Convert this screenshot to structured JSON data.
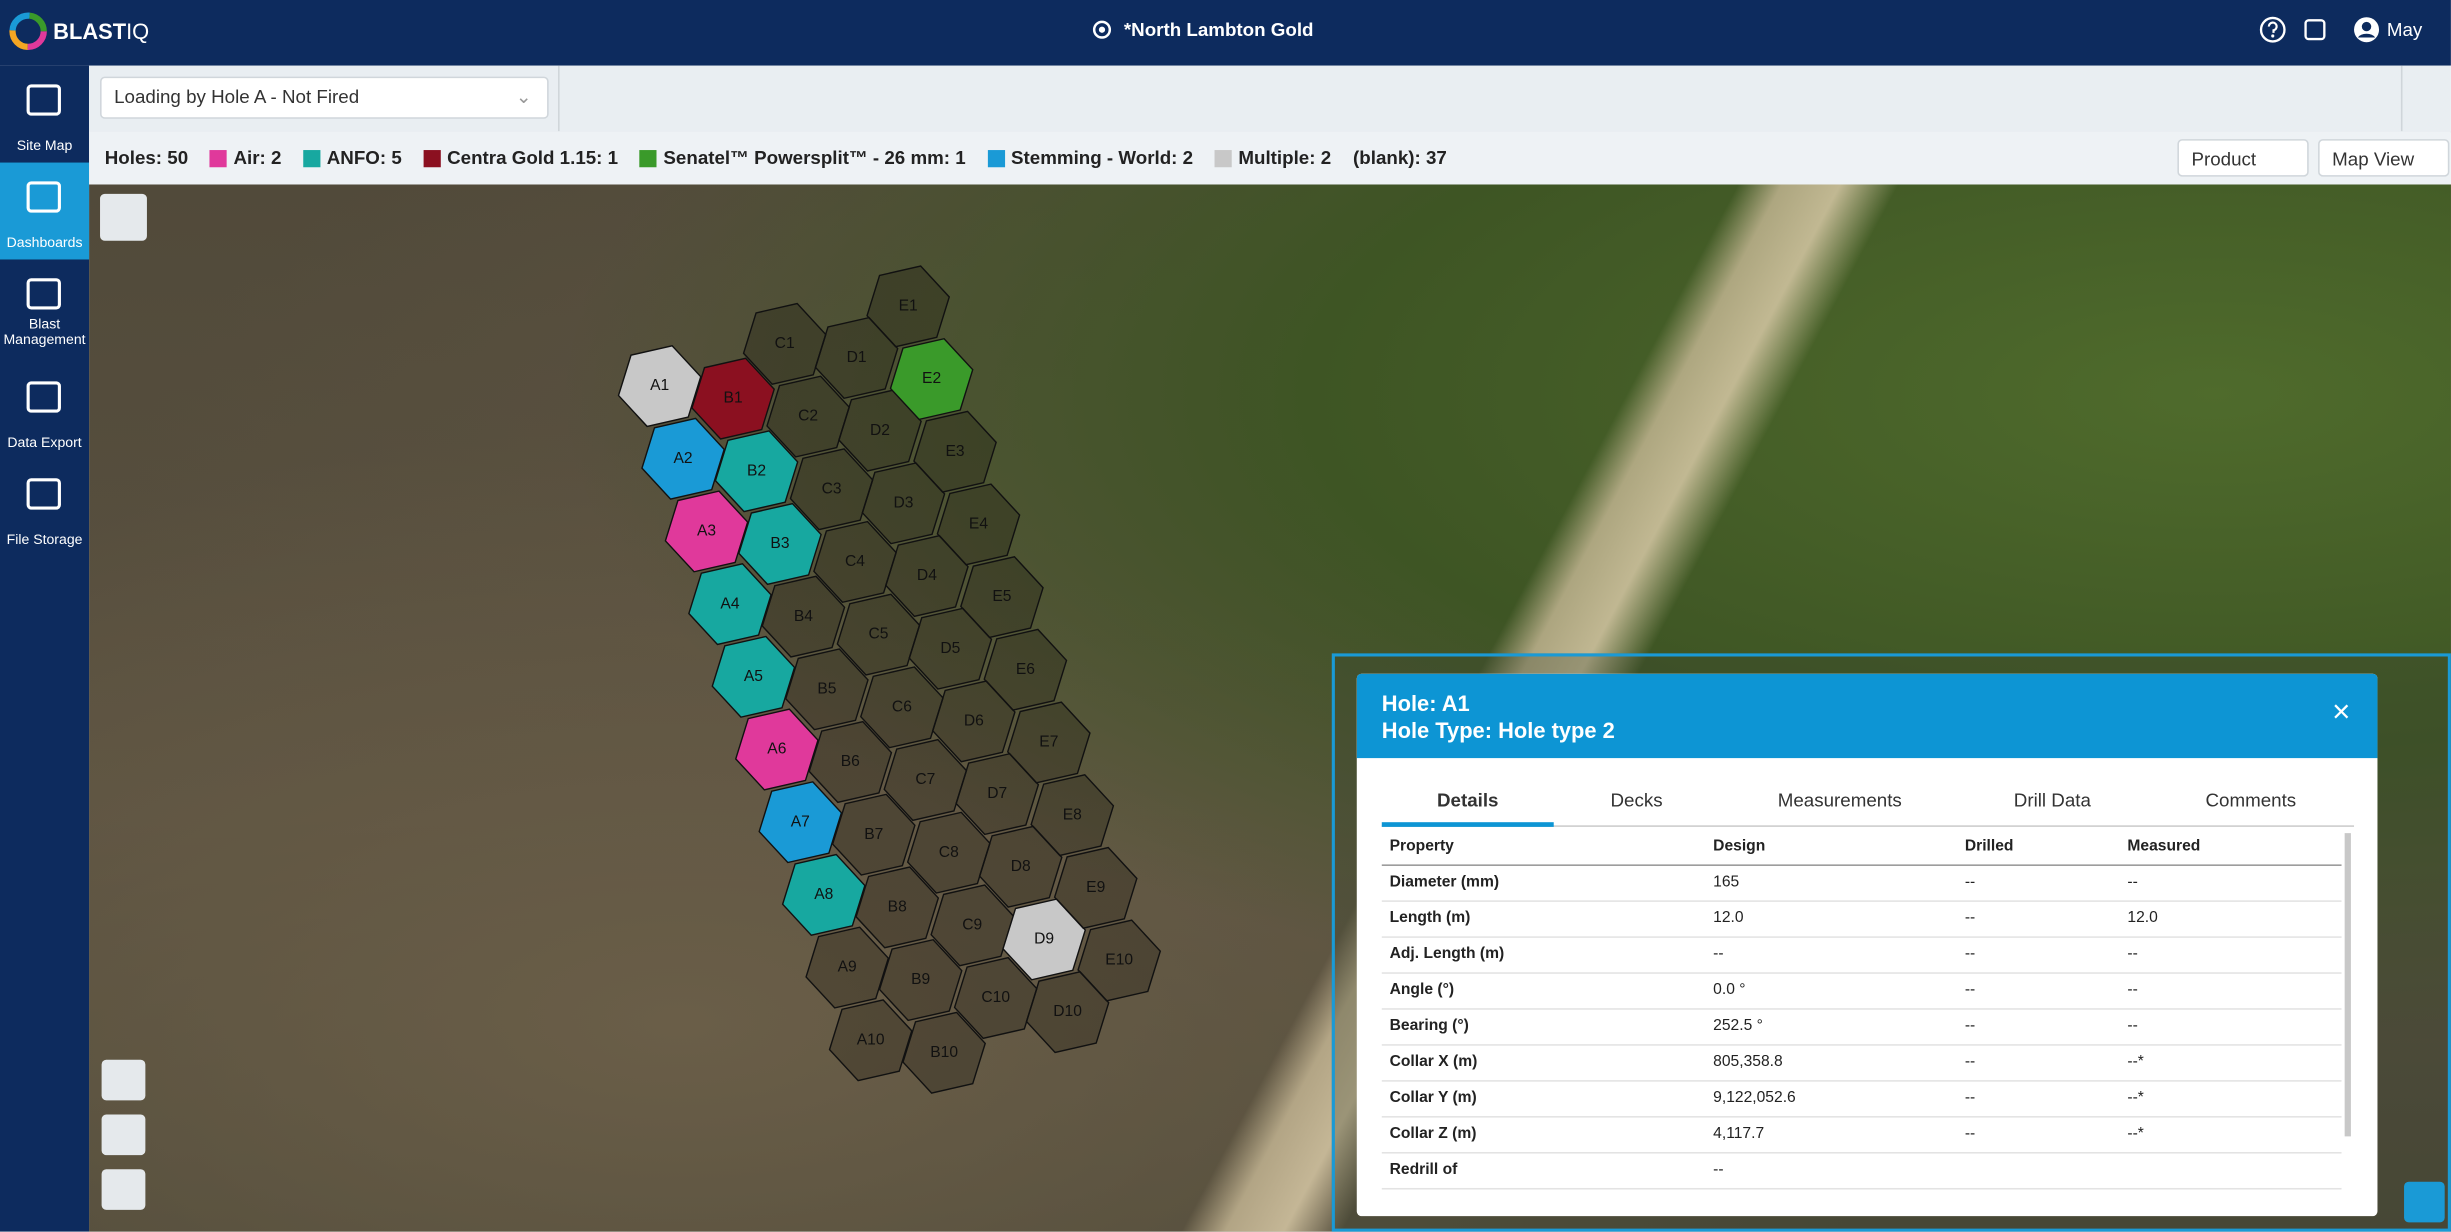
{
  "header": {
    "brand": [
      "BLAST",
      "IQ"
    ],
    "site": "*North Lambton Gold",
    "user": "May"
  },
  "sidebar": [
    "Site Map",
    "Dashboards",
    "Blast Management",
    "Data Export",
    "File Storage"
  ],
  "toolbar": {
    "loading_select": "Loading by Hole A - Not Fired"
  },
  "legend": [
    {
      "label": "Holes: 50",
      "color": null
    },
    {
      "label": "Air: 2",
      "color": "#e0399b"
    },
    {
      "label": "ANFO: 5",
      "color": "#17a8a0"
    },
    {
      "label": "Centra Gold 1.15: 1",
      "color": "#8b1020"
    },
    {
      "label": "Senatel™ Powersplit™ - 26 mm: 1",
      "color": "#3a9a2a"
    },
    {
      "label": "Stemming - World: 2",
      "color": "#1a9ad6"
    },
    {
      "label": "Multiple: 2",
      "color": "#c8c8c8"
    },
    {
      "label": "(blank): 37",
      "color": null
    }
  ],
  "selects": [
    "Product",
    "Map View"
  ],
  "holes": [
    {
      "label": "A1",
      "color": "#c8c8c8"
    },
    {
      "label": "A2",
      "color": "#1a9ad6"
    },
    {
      "label": "A3",
      "color": "#e0399b"
    },
    {
      "label": "A4",
      "color": "#17a8a0"
    },
    {
      "label": "A5",
      "color": "#17a8a0"
    },
    {
      "label": "A6",
      "color": "#e0399b"
    },
    {
      "label": "A7",
      "color": "#1a9ad6"
    },
    {
      "label": "A8",
      "color": "#17a8a0"
    },
    {
      "label": "A9",
      "color": null
    },
    {
      "label": "A10",
      "color": null
    },
    {
      "label": "B1",
      "color": "#8b1020"
    },
    {
      "label": "B2",
      "color": "#17a8a0"
    },
    {
      "label": "B3",
      "color": "#17a8a0"
    },
    {
      "label": "B4",
      "color": null
    },
    {
      "label": "B5",
      "color": null
    },
    {
      "label": "B6",
      "color": null
    },
    {
      "label": "B7",
      "color": null
    },
    {
      "label": "B8",
      "color": null
    },
    {
      "label": "B9",
      "color": null
    },
    {
      "label": "B10",
      "color": null
    },
    {
      "label": "C1",
      "color": null
    },
    {
      "label": "C2",
      "color": null
    },
    {
      "label": "C3",
      "color": null
    },
    {
      "label": "C4",
      "color": null
    },
    {
      "label": "C5",
      "color": null
    },
    {
      "label": "C6",
      "color": null
    },
    {
      "label": "C7",
      "color": null
    },
    {
      "label": "C8",
      "color": null
    },
    {
      "label": "C9",
      "color": null
    },
    {
      "label": "C10",
      "color": null
    },
    {
      "label": "D1",
      "color": null
    },
    {
      "label": "D2",
      "color": null
    },
    {
      "label": "D3",
      "color": null
    },
    {
      "label": "D4",
      "color": null
    },
    {
      "label": "D5",
      "color": null
    },
    {
      "label": "D6",
      "color": null
    },
    {
      "label": "D7",
      "color": null
    },
    {
      "label": "D8",
      "color": null
    },
    {
      "label": "D9",
      "color": "#c8c8c8"
    },
    {
      "label": "D10",
      "color": null
    },
    {
      "label": "E1",
      "color": null
    },
    {
      "label": "E2",
      "color": "#3a9a2a"
    },
    {
      "label": "E3",
      "color": null
    },
    {
      "label": "E4",
      "color": null
    },
    {
      "label": "E5",
      "color": null
    },
    {
      "label": "E6",
      "color": null
    },
    {
      "label": "E7",
      "color": null
    },
    {
      "label": "E8",
      "color": null
    },
    {
      "label": "E9",
      "color": null
    },
    {
      "label": "E10",
      "color": null
    }
  ],
  "panel": {
    "title": "Hole: A1",
    "subtitle": "Hole Type: Hole type 2",
    "tabs": [
      "Details",
      "Decks",
      "Measurements",
      "Drill Data",
      "Comments"
    ],
    "columns": [
      "Property",
      "Design",
      "Drilled",
      "Measured"
    ],
    "rows": [
      [
        "Diameter (mm)",
        "165",
        "--",
        "--"
      ],
      [
        "Length (m)",
        "12.0",
        "--",
        "12.0"
      ],
      [
        "Adj. Length (m)",
        "--",
        "--",
        "--"
      ],
      [
        "Angle (°)",
        "0.0 °",
        "--",
        "--"
      ],
      [
        "Bearing (°)",
        "252.5 °",
        "--",
        "--"
      ],
      [
        "Collar X (m)",
        "805,358.8",
        "--",
        "--*"
      ],
      [
        "Collar Y (m)",
        "9,122,052.6",
        "--",
        "--*"
      ],
      [
        "Collar Z (m)",
        "4,117.7",
        "--",
        "--*"
      ],
      [
        "Redrill of",
        "--",
        "",
        ""
      ]
    ]
  }
}
